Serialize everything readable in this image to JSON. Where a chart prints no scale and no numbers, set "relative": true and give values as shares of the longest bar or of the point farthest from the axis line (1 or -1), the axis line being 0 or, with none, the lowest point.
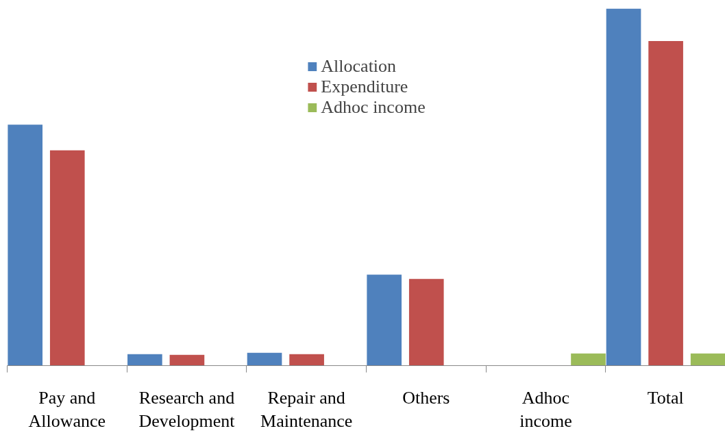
{
  "chart_data": {
    "type": "bar",
    "relative": true,
    "categories": [
      "Pay and Allowance",
      "Research and Development",
      "Repair and Maintenance",
      "Others",
      "Adhoc income",
      "Total"
    ],
    "series": [
      {
        "name": "Allocation",
        "color": "#4f81bd",
        "values": [
          0.675,
          0.032,
          0.036,
          0.255,
          null,
          1.0
        ]
      },
      {
        "name": "Expenditure",
        "color": "#c0504d",
        "values": [
          0.603,
          0.03,
          0.032,
          0.243,
          null,
          0.909
        ]
      },
      {
        "name": "Adhoc income",
        "color": "#9bbb59",
        "values": [
          null,
          null,
          null,
          null,
          0.034,
          0.034
        ]
      }
    ],
    "legend": "top",
    "grid": false
  }
}
